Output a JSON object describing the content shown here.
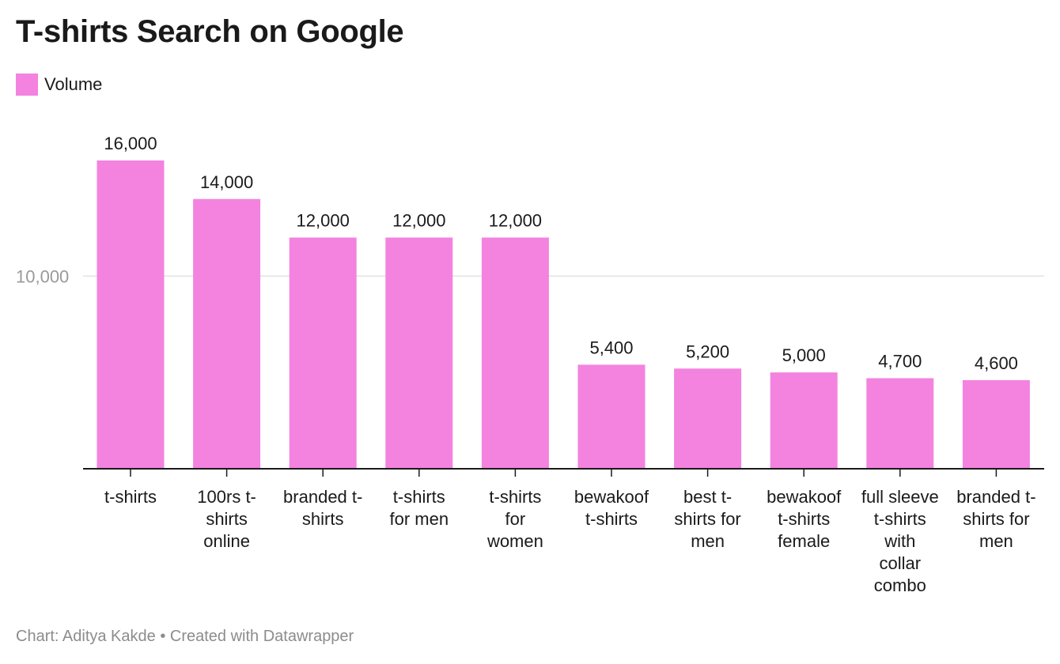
{
  "header": {
    "title": "T-shirts Search on Google"
  },
  "legend": {
    "label": "Volume",
    "color": "#f383df"
  },
  "footer": {
    "credit": "Chart: Aditya Kakde • Created with Datawrapper"
  },
  "chart_data": {
    "type": "bar",
    "title": "T-shirts Search on Google",
    "categories": [
      [
        "t-shirts"
      ],
      [
        "100rs t-",
        "shirts",
        "online"
      ],
      [
        "branded t-",
        "shirts"
      ],
      [
        "t-shirts",
        "for men"
      ],
      [
        "t-shirts",
        "for",
        "women"
      ],
      [
        "bewakoof",
        "t-shirts"
      ],
      [
        "best t-",
        "shirts for",
        "men"
      ],
      [
        "bewakoof",
        "t-shirts",
        "female"
      ],
      [
        "full sleeve",
        "t-shirts",
        "with",
        "collar",
        "combo"
      ],
      [
        "branded t-",
        "shirts for",
        "men"
      ]
    ],
    "series": [
      {
        "name": "Volume",
        "color": "#f383df",
        "values": [
          16000,
          14000,
          12000,
          12000,
          12000,
          5400,
          5200,
          5000,
          4700,
          4600
        ],
        "labels": [
          "16,000",
          "14,000",
          "12,000",
          "12,000",
          "12,000",
          "5,400",
          "5,200",
          "5,000",
          "4,700",
          "4,600"
        ]
      }
    ],
    "yticks": [
      10000
    ],
    "ytick_labels": [
      "10,000"
    ],
    "ylim": [
      0,
      16000
    ],
    "grid": true,
    "legend_position": "top-left"
  }
}
